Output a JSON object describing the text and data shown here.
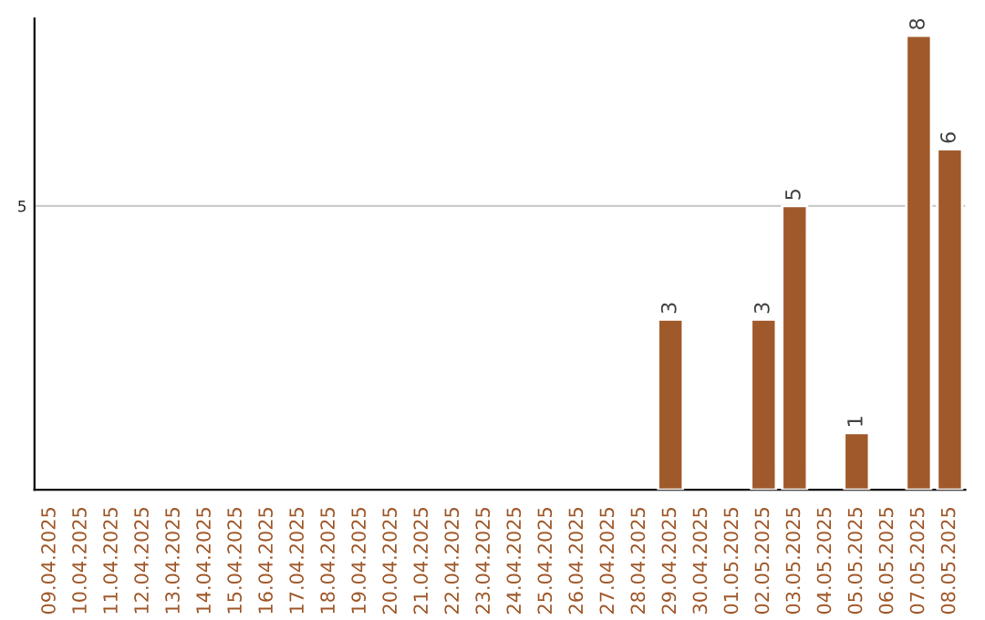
{
  "chart_data": {
    "type": "bar",
    "categories": [
      "09.04.2025",
      "10.04.2025",
      "11.04.2025",
      "12.04.2025",
      "13.04.2025",
      "14.04.2025",
      "15.04.2025",
      "16.04.2025",
      "17.04.2025",
      "18.04.2025",
      "19.04.2025",
      "20.04.2025",
      "21.04.2025",
      "22.04.2025",
      "23.04.2025",
      "24.04.2025",
      "25.04.2025",
      "26.04.2025",
      "27.04.2025",
      "28.04.2025",
      "29.04.2025",
      "30.04.2025",
      "01.05.2025",
      "02.05.2025",
      "03.05.2025",
      "04.05.2025",
      "05.05.2025",
      "06.05.2025",
      "07.05.2025",
      "08.05.2025"
    ],
    "values": [
      null,
      null,
      null,
      null,
      null,
      null,
      null,
      null,
      null,
      null,
      null,
      null,
      null,
      null,
      null,
      null,
      null,
      null,
      null,
      null,
      3,
      null,
      null,
      3,
      5,
      null,
      1,
      null,
      8,
      6
    ],
    "data_labels": true,
    "color": "#a0592a",
    "ylim": [
      0,
      8.3
    ],
    "yticks": [
      5
    ],
    "grid": "y"
  }
}
